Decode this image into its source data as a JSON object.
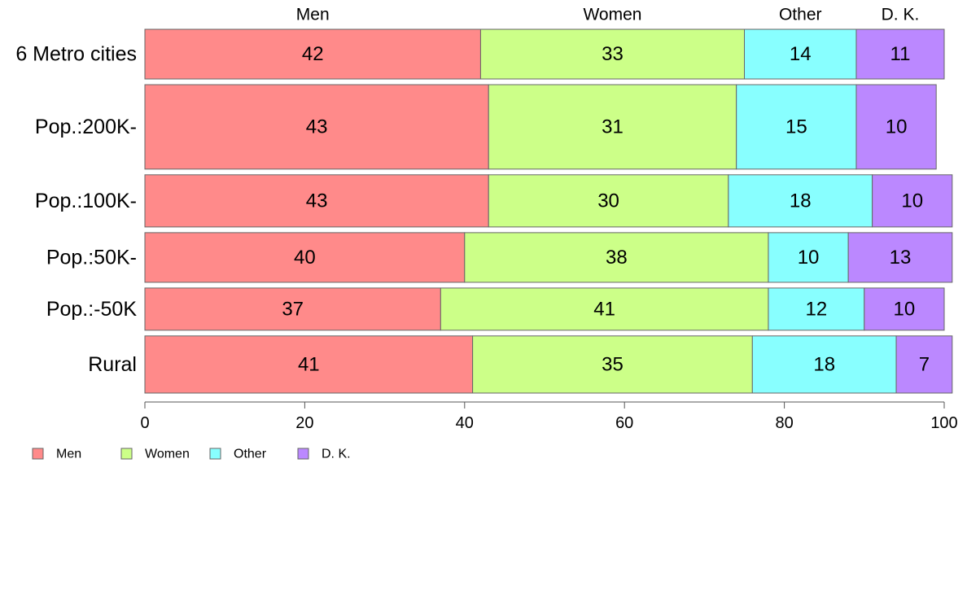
{
  "chart_data": {
    "type": "bar",
    "orientation": "horizontal",
    "stacked": true,
    "normalized_percent": true,
    "categories": [
      "6 Metro cities",
      "Pop.:200K-",
      "Pop.:100K-",
      "Pop.:50K-",
      "Pop.:-50K",
      "Rural"
    ],
    "series": [
      {
        "name": "Men",
        "color": "#ff8a8a",
        "values": [
          42,
          43,
          43,
          40,
          37,
          41
        ]
      },
      {
        "name": "Women",
        "color": "#ccff88",
        "values": [
          33,
          31,
          30,
          38,
          41,
          35
        ]
      },
      {
        "name": "Other",
        "color": "#88ffff",
        "values": [
          14,
          15,
          18,
          10,
          12,
          18
        ]
      },
      {
        "name": "D. K.",
        "color": "#bb88ff",
        "values": [
          11,
          10,
          10,
          13,
          10,
          7
        ]
      }
    ],
    "row_weights": [
      1,
      1.7,
      1.05,
      1,
      0.85,
      1.15
    ],
    "column_headers": [
      "Men",
      "Women",
      "Other",
      "D. K."
    ],
    "xlim": [
      0,
      100
    ],
    "xticks": [
      0,
      20,
      40,
      60,
      80,
      100
    ],
    "title": "",
    "xlabel": "",
    "ylabel": "",
    "grid": false,
    "legend_position": "bottom-left"
  }
}
